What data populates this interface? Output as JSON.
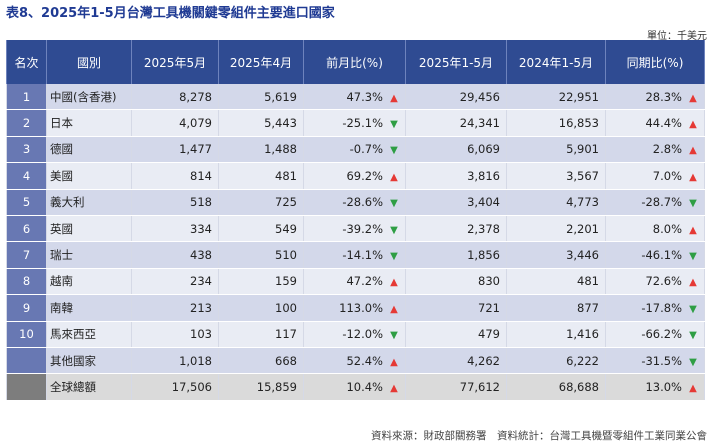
{
  "title": "表8、2025年1-5月台灣工具機關鍵零組件主要進口國家",
  "unit": "單位：千美元",
  "headers": {
    "rank": "名次",
    "country": "國別",
    "may2025": "2025年5月",
    "apr2025": "2025年4月",
    "mom": "前月比(%)",
    "ytd2025": "2025年1-5月",
    "ytd2024": "2024年1-5月",
    "yoy": "同期比(%)"
  },
  "rows": [
    {
      "rank": "1",
      "country": "中國(含香港)",
      "may2025": "8,278",
      "apr2025": "5,619",
      "mom": "47.3%",
      "mom_dir": "up",
      "ytd2025": "29,456",
      "ytd2024": "22,951",
      "yoy": "28.3%",
      "yoy_dir": "up"
    },
    {
      "rank": "2",
      "country": "日本",
      "may2025": "4,079",
      "apr2025": "5,443",
      "mom": "-25.1%",
      "mom_dir": "down",
      "ytd2025": "24,341",
      "ytd2024": "16,853",
      "yoy": "44.4%",
      "yoy_dir": "up"
    },
    {
      "rank": "3",
      "country": "德國",
      "may2025": "1,477",
      "apr2025": "1,488",
      "mom": "-0.7%",
      "mom_dir": "down",
      "ytd2025": "6,069",
      "ytd2024": "5,901",
      "yoy": "2.8%",
      "yoy_dir": "up"
    },
    {
      "rank": "4",
      "country": "美國",
      "may2025": "814",
      "apr2025": "481",
      "mom": "69.2%",
      "mom_dir": "up",
      "ytd2025": "3,816",
      "ytd2024": "3,567",
      "yoy": "7.0%",
      "yoy_dir": "up"
    },
    {
      "rank": "5",
      "country": "義大利",
      "may2025": "518",
      "apr2025": "725",
      "mom": "-28.6%",
      "mom_dir": "down",
      "ytd2025": "3,404",
      "ytd2024": "4,773",
      "yoy": "-28.7%",
      "yoy_dir": "down"
    },
    {
      "rank": "6",
      "country": "英國",
      "may2025": "334",
      "apr2025": "549",
      "mom": "-39.2%",
      "mom_dir": "down",
      "ytd2025": "2,378",
      "ytd2024": "2,201",
      "yoy": "8.0%",
      "yoy_dir": "up"
    },
    {
      "rank": "7",
      "country": "瑞士",
      "may2025": "438",
      "apr2025": "510",
      "mom": "-14.1%",
      "mom_dir": "down",
      "ytd2025": "1,856",
      "ytd2024": "3,446",
      "yoy": "-46.1%",
      "yoy_dir": "down"
    },
    {
      "rank": "8",
      "country": "越南",
      "may2025": "234",
      "apr2025": "159",
      "mom": "47.2%",
      "mom_dir": "up",
      "ytd2025": "830",
      "ytd2024": "481",
      "yoy": "72.6%",
      "yoy_dir": "up"
    },
    {
      "rank": "9",
      "country": "南韓",
      "may2025": "213",
      "apr2025": "100",
      "mom": "113.0%",
      "mom_dir": "up",
      "ytd2025": "721",
      "ytd2024": "877",
      "yoy": "-17.8%",
      "yoy_dir": "down"
    },
    {
      "rank": "10",
      "country": "馬來西亞",
      "may2025": "103",
      "apr2025": "117",
      "mom": "-12.0%",
      "mom_dir": "down",
      "ytd2025": "479",
      "ytd2024": "1,416",
      "yoy": "-66.2%",
      "yoy_dir": "down"
    },
    {
      "rank": "",
      "country": "其他國家",
      "may2025": "1,018",
      "apr2025": "668",
      "mom": "52.4%",
      "mom_dir": "up",
      "ytd2025": "4,262",
      "ytd2024": "6,222",
      "yoy": "-31.5%",
      "yoy_dir": "down"
    },
    {
      "rank": "",
      "country": "全球總額",
      "may2025": "17,506",
      "apr2025": "15,859",
      "mom": "10.4%",
      "mom_dir": "up",
      "ytd2025": "77,612",
      "ytd2024": "68,688",
      "yoy": "13.0%",
      "yoy_dir": "up"
    }
  ],
  "footer": "資料來源：財政部關務署　資料統計：台灣工具機暨零組件工業同業公會",
  "colors": {
    "header_bg": "#2f4b92",
    "rank_bg": "#6878b3",
    "row_odd": "#d3d8ea",
    "row_even": "#e9ecf4",
    "total_row": "#dadada",
    "arrow_up": "#e53935",
    "arrow_down": "#2e9e44"
  },
  "icons": {
    "up": "up-triangle-icon",
    "down": "down-triangle-icon"
  }
}
